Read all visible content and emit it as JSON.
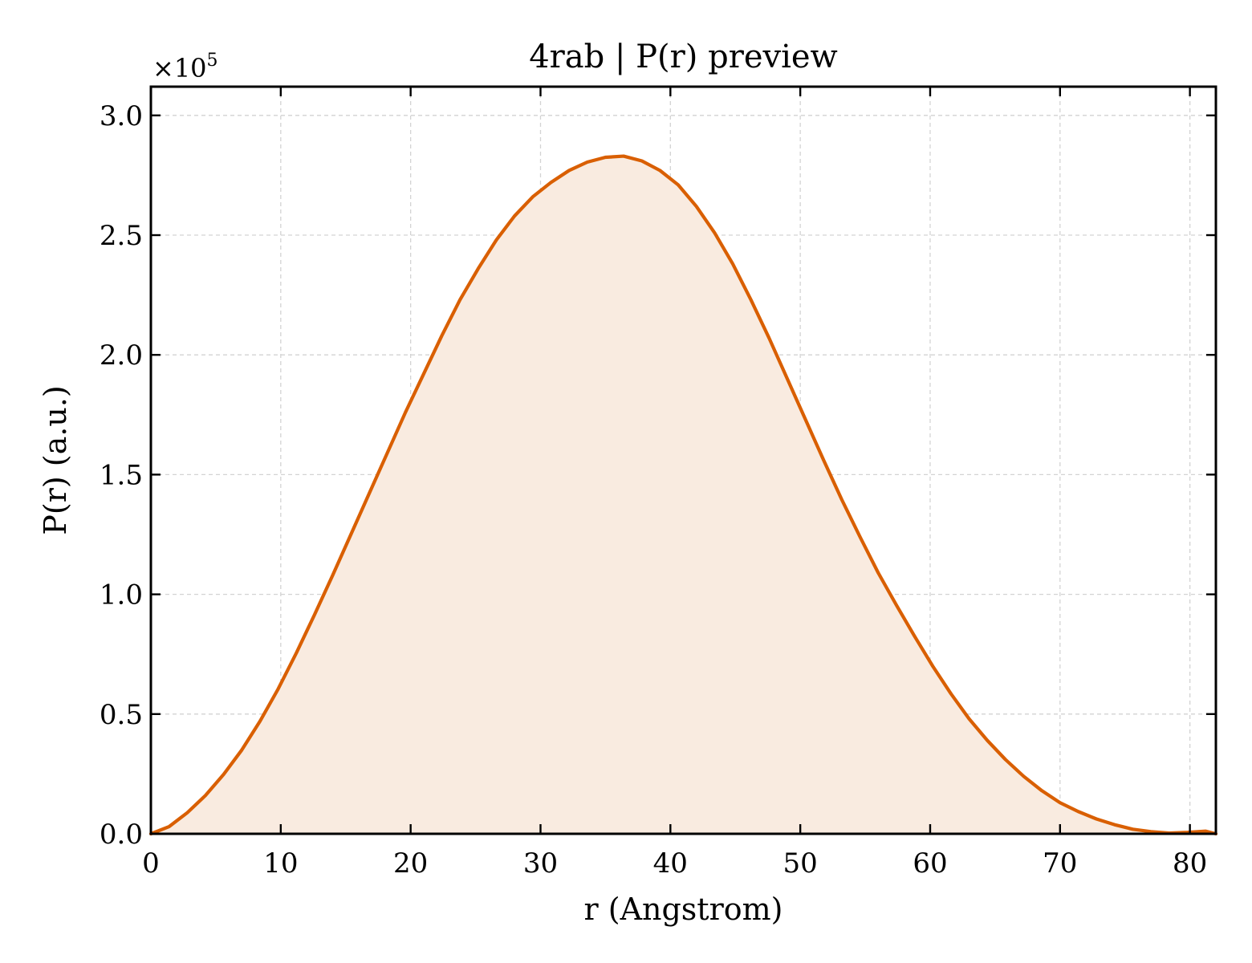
{
  "chart_data": {
    "type": "area",
    "title": "4rab | P(r) preview",
    "xlabel": "r (Angstrom)",
    "ylabel": "P(r) (a.u.)",
    "y_offset_label": {
      "base": "×10",
      "exponent": "5"
    },
    "xlim": [
      0,
      82
    ],
    "ylim": [
      0,
      3.12
    ],
    "y_scale_factor": 100000,
    "x_ticks": [
      0,
      10,
      20,
      30,
      40,
      50,
      60,
      70,
      80
    ],
    "x_tick_labels": [
      "0",
      "10",
      "20",
      "30",
      "40",
      "50",
      "60",
      "70",
      "80"
    ],
    "y_ticks": [
      0,
      0.5,
      1.0,
      1.5,
      2.0,
      2.5,
      3.0
    ],
    "y_tick_labels": [
      "0.0",
      "0.5",
      "1.0",
      "1.5",
      "2.0",
      "2.5",
      "3.0"
    ],
    "grid": true,
    "colors": {
      "line": "#d95f02",
      "fill": "#f9ebe0",
      "grid": "#d3d3d3"
    },
    "series": [
      {
        "x": [
          0,
          1.4,
          2.8,
          4.2,
          5.6,
          7.0,
          8.4,
          9.8,
          11.2,
          12.6,
          14.0,
          15.4,
          16.8,
          18.2,
          19.6,
          21.0,
          22.4,
          23.8,
          25.2,
          26.6,
          28.0,
          29.4,
          30.8,
          32.2,
          33.6,
          35.0,
          36.4,
          37.8,
          39.2,
          40.6,
          42.0,
          43.4,
          44.8,
          46.2,
          47.6,
          49.0,
          50.4,
          51.8,
          53.2,
          54.6,
          56.0,
          57.4,
          58.8,
          60.2,
          61.6,
          63.0,
          64.4,
          65.8,
          67.2,
          68.6,
          70.0,
          71.4,
          72.8,
          74.2,
          75.6,
          77.0,
          78.4,
          79.8,
          81.2,
          82.0
        ],
        "y": [
          0.0,
          0.03,
          0.088,
          0.16,
          0.248,
          0.35,
          0.47,
          0.605,
          0.755,
          0.915,
          1.08,
          1.25,
          1.42,
          1.59,
          1.76,
          1.92,
          2.08,
          2.23,
          2.36,
          2.48,
          2.58,
          2.66,
          2.72,
          2.77,
          2.805,
          2.825,
          2.83,
          2.81,
          2.77,
          2.71,
          2.62,
          2.51,
          2.38,
          2.23,
          2.07,
          1.9,
          1.73,
          1.56,
          1.395,
          1.24,
          1.09,
          0.955,
          0.825,
          0.7,
          0.585,
          0.48,
          0.39,
          0.31,
          0.24,
          0.18,
          0.13,
          0.093,
          0.062,
          0.038,
          0.019,
          0.009,
          0.003,
          0.006,
          0.011,
          0.0
        ]
      }
    ]
  }
}
